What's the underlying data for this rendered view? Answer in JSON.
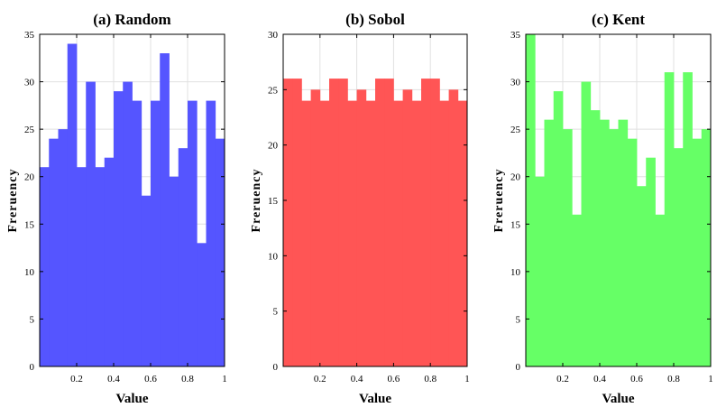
{
  "chart_data": [
    {
      "type": "bar",
      "title": "(a) Random",
      "xlabel": "Value",
      "ylabel": "Freruency",
      "color": "#5555ff",
      "xlim": [
        0,
        1
      ],
      "ylim": [
        0,
        35
      ],
      "xticks": [
        "0.2",
        "0.4",
        "0.6",
        "0.8",
        "1"
      ],
      "yticks": [
        "0",
        "5",
        "10",
        "15",
        "20",
        "25",
        "30",
        "35"
      ],
      "bins": 20,
      "values": [
        21,
        24,
        25,
        34,
        21,
        30,
        21,
        22,
        29,
        30,
        28,
        18,
        28,
        33,
        20,
        23,
        28,
        13,
        28,
        24
      ]
    },
    {
      "type": "bar",
      "title": "(b) Sobol",
      "xlabel": "Value",
      "ylabel": "Freruency",
      "color": "#ff5555",
      "xlim": [
        0,
        1
      ],
      "ylim": [
        0,
        30
      ],
      "xticks": [
        "0.2",
        "0.4",
        "0.6",
        "0.8",
        "1"
      ],
      "yticks": [
        "0",
        "5",
        "10",
        "15",
        "20",
        "25",
        "30"
      ],
      "bins": 20,
      "values": [
        26,
        26,
        24,
        25,
        24,
        26,
        26,
        24,
        25,
        24,
        26,
        26,
        24,
        25,
        24,
        26,
        26,
        24,
        25,
        24
      ]
    },
    {
      "type": "bar",
      "title": "(c) Kent",
      "xlabel": "Value",
      "ylabel": "Freruency",
      "color": "#66ff66",
      "xlim": [
        0,
        1
      ],
      "ylim": [
        0,
        35
      ],
      "xticks": [
        "0.2",
        "0.4",
        "0.6",
        "0.8",
        "1"
      ],
      "yticks": [
        "0",
        "5",
        "10",
        "15",
        "20",
        "25",
        "30",
        "35"
      ],
      "bins": 20,
      "values": [
        35,
        20,
        26,
        29,
        25,
        16,
        30,
        27,
        26,
        25,
        26,
        24,
        19,
        22,
        16,
        31,
        23,
        31,
        24,
        25
      ]
    }
  ]
}
